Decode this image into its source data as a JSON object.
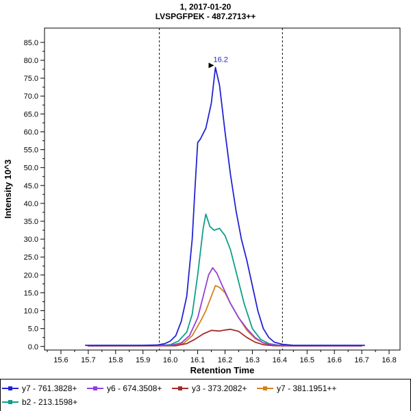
{
  "titles": {
    "line1": "1, 2017-01-20",
    "line2": "LVSPGFPEK - 487.2713++"
  },
  "chart_data": {
    "type": "line",
    "title": "1, 2017-01-20",
    "subtitle": "LVSPGFPEK - 487.2713++",
    "xlabel": "Retention Time",
    "ylabel": "Intensity 10^3",
    "xlim": [
      15.54,
      16.84
    ],
    "ylim": [
      -1,
      89
    ],
    "xticks": [
      15.6,
      15.7,
      15.8,
      15.9,
      16.0,
      16.1,
      16.2,
      16.3,
      16.4,
      16.5,
      16.6,
      16.7,
      16.8
    ],
    "yticks": [
      0,
      5,
      10,
      15,
      20,
      25,
      30,
      35,
      40,
      45,
      50,
      55,
      60,
      65,
      70,
      75,
      80,
      85
    ],
    "grid": false,
    "legend_position": "bottom",
    "integration_boundaries": [
      15.96,
      16.41
    ],
    "boundary_style": "dashed",
    "peak_annotation": {
      "x": 16.165,
      "y": 78,
      "label": "16.2",
      "color": "#2222D4",
      "arrow_color": "#000000"
    },
    "series": [
      {
        "name": "y7 - 761.3828+",
        "color": "#2222D4",
        "points": [
          [
            15.69,
            0.3
          ],
          [
            15.8,
            0.3
          ],
          [
            15.9,
            0.3
          ],
          [
            15.95,
            0.4
          ],
          [
            15.98,
            0.8
          ],
          [
            16.0,
            1.5
          ],
          [
            16.02,
            3
          ],
          [
            16.04,
            7
          ],
          [
            16.06,
            14
          ],
          [
            16.08,
            30
          ],
          [
            16.09,
            44
          ],
          [
            16.1,
            57
          ],
          [
            16.11,
            58
          ],
          [
            16.13,
            61
          ],
          [
            16.15,
            68
          ],
          [
            16.165,
            78
          ],
          [
            16.18,
            73
          ],
          [
            16.2,
            60
          ],
          [
            16.22,
            48
          ],
          [
            16.24,
            38
          ],
          [
            16.26,
            30
          ],
          [
            16.28,
            24
          ],
          [
            16.3,
            17
          ],
          [
            16.32,
            10
          ],
          [
            16.34,
            5
          ],
          [
            16.36,
            2.5
          ],
          [
            16.38,
            1.2
          ],
          [
            16.41,
            0.6
          ],
          [
            16.45,
            0.3
          ],
          [
            16.55,
            0.3
          ],
          [
            16.71,
            0.3
          ]
        ]
      },
      {
        "name": "y6 - 674.3508+",
        "color": "#9340D4",
        "points": [
          [
            15.7,
            0.2
          ],
          [
            16.0,
            0.3
          ],
          [
            16.04,
            1
          ],
          [
            16.07,
            3
          ],
          [
            16.1,
            8
          ],
          [
            16.12,
            14
          ],
          [
            16.14,
            20
          ],
          [
            16.155,
            22
          ],
          [
            16.17,
            20.5
          ],
          [
            16.19,
            17
          ],
          [
            16.22,
            12
          ],
          [
            16.25,
            8
          ],
          [
            16.28,
            5
          ],
          [
            16.31,
            2.5
          ],
          [
            16.34,
            1
          ],
          [
            16.38,
            0.4
          ],
          [
            16.45,
            0.2
          ],
          [
            16.7,
            0.2
          ]
        ]
      },
      {
        "name": "y3 - 373.2082+",
        "color": "#A52A2A",
        "points": [
          [
            15.7,
            0.15
          ],
          [
            16.02,
            0.2
          ],
          [
            16.06,
            0.8
          ],
          [
            16.09,
            2
          ],
          [
            16.12,
            3.5
          ],
          [
            16.15,
            4.5
          ],
          [
            16.18,
            4.3
          ],
          [
            16.2,
            4.6
          ],
          [
            16.22,
            4.8
          ],
          [
            16.25,
            4.2
          ],
          [
            16.28,
            2.5
          ],
          [
            16.31,
            1.2
          ],
          [
            16.34,
            0.5
          ],
          [
            16.38,
            0.2
          ],
          [
            16.45,
            0.15
          ],
          [
            16.7,
            0.15
          ]
        ]
      },
      {
        "name": "y7 - 381.1951++",
        "color": "#D2821E",
        "points": [
          [
            15.7,
            0.15
          ],
          [
            16.0,
            0.2
          ],
          [
            16.05,
            1
          ],
          [
            16.08,
            3
          ],
          [
            16.11,
            7
          ],
          [
            16.13,
            10
          ],
          [
            16.15,
            14
          ],
          [
            16.165,
            17
          ],
          [
            16.18,
            16.5
          ],
          [
            16.2,
            15
          ],
          [
            16.22,
            12
          ],
          [
            16.25,
            8
          ],
          [
            16.28,
            4.5
          ],
          [
            16.31,
            2.2
          ],
          [
            16.34,
            1
          ],
          [
            16.38,
            0.4
          ],
          [
            16.45,
            0.2
          ],
          [
            16.7,
            0.2
          ]
        ]
      },
      {
        "name": "b2 - 213.1598+",
        "color": "#0E9E88",
        "points": [
          [
            15.7,
            0.2
          ],
          [
            15.95,
            0.2
          ],
          [
            16.0,
            0.5
          ],
          [
            16.03,
            1.5
          ],
          [
            16.06,
            4
          ],
          [
            16.08,
            9
          ],
          [
            16.1,
            20
          ],
          [
            16.12,
            33
          ],
          [
            16.13,
            37
          ],
          [
            16.145,
            33.5
          ],
          [
            16.16,
            32.5
          ],
          [
            16.18,
            33
          ],
          [
            16.2,
            31
          ],
          [
            16.22,
            27
          ],
          [
            16.24,
            21
          ],
          [
            16.27,
            12
          ],
          [
            16.3,
            5
          ],
          [
            16.33,
            2
          ],
          [
            16.36,
            0.8
          ],
          [
            16.4,
            0.3
          ],
          [
            16.5,
            0.2
          ],
          [
            16.7,
            0.2
          ]
        ]
      }
    ]
  }
}
